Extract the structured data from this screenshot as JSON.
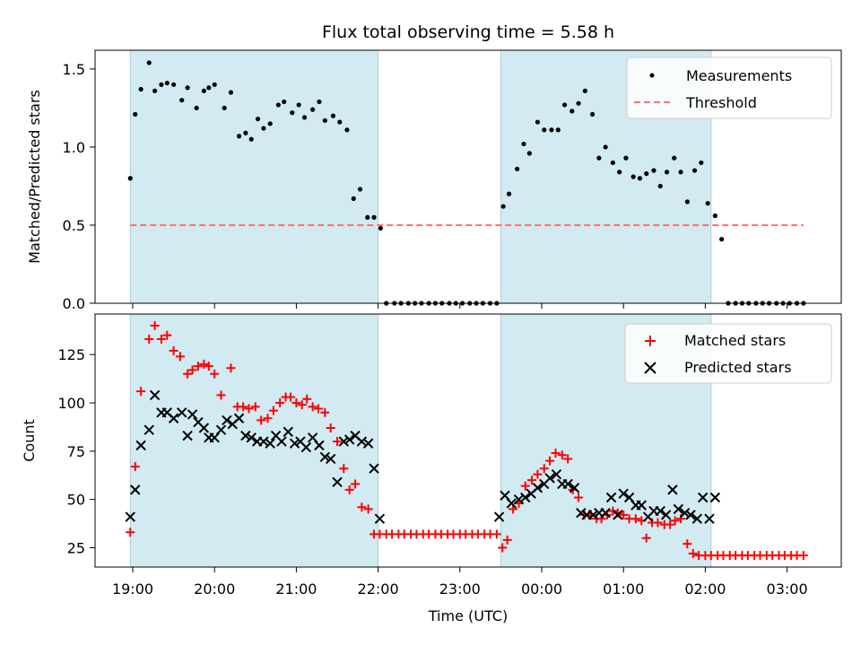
{
  "title": "Flux total observing time = 5.58 h",
  "xlabel": "Time (UTC)",
  "x_ticks": [
    "19:00",
    "20:00",
    "21:00",
    "22:00",
    "23:00",
    "00:00",
    "01:00",
    "02:00",
    "03:00"
  ],
  "colors": {
    "shade": "#add8e6",
    "measurement": "#000000",
    "threshold": "#ff7070",
    "matched": "#ff0000",
    "predicted": "#000000"
  },
  "chart_data": [
    {
      "type": "scatter",
      "ylabel": "Matched/Predicted stars",
      "ylim": [
        0,
        1.62
      ],
      "y_ticks": [
        0.0,
        0.5,
        1.0,
        1.5
      ],
      "y_tick_labels": [
        "0.0",
        "0.5",
        "1.0",
        "1.5"
      ],
      "x_unit": "hours since 19:00 UTC",
      "shaded_intervals": [
        [
          -0.03,
          3.0
        ],
        [
          4.5,
          7.07
        ]
      ],
      "legend": {
        "placement": "top-right",
        "entries": [
          "Measurements",
          "Threshold"
        ]
      },
      "series": [
        {
          "name": "Measurements",
          "marker": "dot",
          "x": [
            -0.03,
            0.03,
            0.1,
            0.2,
            0.27,
            0.35,
            0.42,
            0.5,
            0.6,
            0.67,
            0.78,
            0.87,
            0.93,
            1.0,
            1.12,
            1.2,
            1.3,
            1.38,
            1.45,
            1.53,
            1.6,
            1.68,
            1.78,
            1.85,
            1.95,
            2.03,
            2.1,
            2.2,
            2.28,
            2.35,
            2.45,
            2.53,
            2.62,
            2.7,
            2.78,
            2.87,
            2.95,
            3.03,
            3.1,
            3.2,
            3.28,
            3.37,
            3.45,
            3.53,
            3.62,
            3.7,
            3.78,
            3.87,
            3.95,
            4.03,
            4.12,
            4.2,
            4.28,
            4.37,
            4.45,
            4.53,
            4.6,
            4.7,
            4.78,
            4.85,
            4.95,
            5.03,
            5.12,
            5.2,
            5.28,
            5.37,
            5.45,
            5.53,
            5.62,
            5.7,
            5.78,
            5.87,
            5.95,
            6.03,
            6.12,
            6.2,
            6.28,
            6.37,
            6.45,
            6.53,
            6.62,
            6.7,
            6.78,
            6.87,
            6.95,
            7.03,
            7.12,
            7.2,
            7.28,
            7.37,
            7.45,
            7.53,
            7.62,
            7.7,
            7.78,
            7.87,
            7.95,
            8.03,
            8.12,
            8.2
          ],
          "y": [
            0.8,
            1.21,
            1.37,
            1.54,
            1.36,
            1.4,
            1.41,
            1.4,
            1.3,
            1.38,
            1.25,
            1.36,
            1.38,
            1.4,
            1.25,
            1.35,
            1.07,
            1.09,
            1.05,
            1.18,
            1.12,
            1.15,
            1.27,
            1.29,
            1.22,
            1.27,
            1.19,
            1.24,
            1.29,
            1.17,
            1.2,
            1.16,
            1.11,
            0.67,
            0.73,
            0.55,
            0.55,
            0.48,
            0.0,
            0.0,
            0.0,
            0.0,
            0.0,
            0.0,
            0.0,
            0.0,
            0.0,
            0.0,
            0.0,
            0.0,
            0.0,
            0.0,
            0.0,
            0.0,
            0.0,
            0.62,
            0.7,
            0.86,
            1.02,
            0.96,
            1.16,
            1.11,
            1.11,
            1.11,
            1.27,
            1.23,
            1.28,
            1.36,
            1.21,
            0.93,
            1.0,
            0.9,
            0.84,
            0.93,
            0.81,
            0.8,
            0.83,
            0.85,
            0.75,
            0.84,
            0.93,
            0.84,
            0.65,
            0.85,
            0.9,
            0.64,
            0.56,
            0.41,
            0.0,
            0.0,
            0.0,
            0.0,
            0.0,
            0.0,
            0.0,
            0.0,
            0.0,
            0.0,
            0.0,
            0.0
          ]
        },
        {
          "name": "Threshold",
          "marker": "dashed-line",
          "x": [
            -0.03,
            8.2
          ],
          "y": [
            0.5,
            0.5
          ]
        }
      ]
    },
    {
      "type": "scatter",
      "ylabel": "Count",
      "ylim": [
        15,
        146
      ],
      "y_ticks": [
        25,
        50,
        75,
        100,
        125
      ],
      "y_tick_labels": [
        "25",
        "50",
        "75",
        "100",
        "125"
      ],
      "x_unit": "hours since 19:00 UTC",
      "shaded_intervals": [
        [
          -0.03,
          3.0
        ],
        [
          4.5,
          7.07
        ]
      ],
      "legend": {
        "placement": "top-right",
        "entries": [
          "Matched stars",
          "Predicted stars"
        ]
      },
      "series": [
        {
          "name": "Matched stars",
          "marker": "plus",
          "x": [
            -0.03,
            0.03,
            0.1,
            0.2,
            0.27,
            0.35,
            0.42,
            0.5,
            0.58,
            0.67,
            0.73,
            0.8,
            0.87,
            0.93,
            1.0,
            1.08,
            1.2,
            1.28,
            1.35,
            1.42,
            1.5,
            1.57,
            1.65,
            1.72,
            1.8,
            1.87,
            1.93,
            2.0,
            2.07,
            2.13,
            2.2,
            2.27,
            2.35,
            2.42,
            2.5,
            2.58,
            2.65,
            2.72,
            2.8,
            2.88,
            2.95,
            3.02,
            3.1,
            3.17,
            3.25,
            3.32,
            3.4,
            3.47,
            3.55,
            3.62,
            3.7,
            3.77,
            3.85,
            3.92,
            4.0,
            4.07,
            4.15,
            4.22,
            4.3,
            4.37,
            4.45,
            4.52,
            4.58,
            4.65,
            4.72,
            4.8,
            4.88,
            4.95,
            5.03,
            5.1,
            5.17,
            5.25,
            5.32,
            5.38,
            5.45,
            5.52,
            5.6,
            5.67,
            5.73,
            5.8,
            5.87,
            5.93,
            6.0,
            6.07,
            6.15,
            6.22,
            6.28,
            6.35,
            6.42,
            6.5,
            6.57,
            6.63,
            6.7,
            6.78,
            6.85,
            6.92,
            7.0,
            7.07,
            7.15,
            7.22,
            7.3,
            7.37,
            7.45,
            7.52,
            7.6,
            7.67,
            7.75,
            7.82,
            7.9,
            7.97,
            8.05,
            8.12,
            8.2
          ],
          "y": [
            33,
            67,
            106,
            133,
            140,
            133,
            135,
            127,
            124,
            115,
            117,
            119,
            120,
            119,
            115,
            104,
            118,
            98,
            98,
            97,
            98,
            91,
            92,
            96,
            100,
            103,
            103,
            100,
            99,
            102,
            98,
            97,
            95,
            87,
            80,
            66,
            55,
            58,
            46,
            45,
            32,
            32,
            32,
            32,
            32,
            32,
            32,
            32,
            32,
            32,
            32,
            32,
            32,
            32,
            32,
            32,
            32,
            32,
            32,
            32,
            32,
            25,
            29,
            45,
            48,
            57,
            60,
            63,
            66,
            70,
            74,
            73,
            71,
            55,
            51,
            42,
            42,
            40,
            40,
            42,
            44,
            43,
            42,
            40,
            40,
            39,
            30,
            38,
            38,
            37,
            37,
            39,
            40,
            27,
            22,
            21,
            21,
            21,
            21,
            21,
            21,
            21,
            21,
            21,
            21,
            21,
            21,
            21,
            21,
            21,
            21,
            21,
            21
          ]
        },
        {
          "name": "Predicted stars",
          "marker": "x",
          "x": [
            -0.03,
            0.03,
            0.1,
            0.2,
            0.27,
            0.35,
            0.42,
            0.5,
            0.6,
            0.67,
            0.73,
            0.8,
            0.87,
            0.93,
            1.0,
            1.08,
            1.15,
            1.22,
            1.3,
            1.38,
            1.45,
            1.52,
            1.6,
            1.68,
            1.75,
            1.82,
            1.9,
            1.98,
            2.05,
            2.12,
            2.2,
            2.28,
            2.35,
            2.42,
            2.5,
            2.58,
            2.65,
            2.72,
            2.8,
            2.88,
            2.95,
            3.02,
            4.48,
            4.55,
            4.63,
            4.72,
            4.8,
            4.87,
            4.95,
            5.03,
            5.1,
            5.18,
            5.25,
            5.32,
            5.4,
            5.48,
            5.55,
            5.63,
            5.7,
            5.78,
            5.85,
            5.93,
            6.0,
            6.07,
            6.15,
            6.22,
            6.3,
            6.37,
            6.45,
            6.52,
            6.6,
            6.67,
            6.75,
            6.82,
            6.9,
            6.97,
            7.05,
            7.12
          ],
          "y": [
            41,
            55,
            78,
            86,
            104,
            95,
            95,
            92,
            95,
            83,
            94,
            90,
            87,
            82,
            82,
            86,
            91,
            89,
            92,
            83,
            82,
            80,
            80,
            79,
            83,
            80,
            85,
            79,
            80,
            77,
            82,
            78,
            72,
            71,
            59,
            80,
            81,
            83,
            80,
            79,
            66,
            40,
            41,
            52,
            48,
            50,
            51,
            53,
            56,
            58,
            61,
            63,
            58,
            58,
            56,
            43,
            42,
            42,
            43,
            43,
            51,
            42,
            53,
            51,
            47,
            47,
            41,
            44,
            44,
            42,
            55,
            45,
            43,
            42,
            40,
            51,
            40,
            51
          ]
        }
      ]
    }
  ]
}
